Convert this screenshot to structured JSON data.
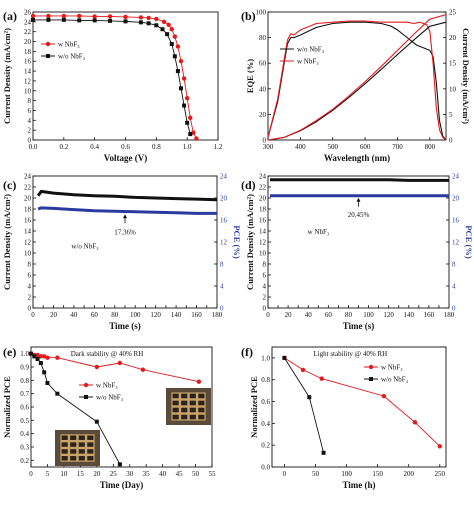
{
  "chart_data": [
    {
      "id": "a",
      "panel_label": "(a)",
      "type": "line",
      "xlabel": "Voltage (V)",
      "ylabel": "Current Density (mA/cm²)",
      "xlim": [
        0.0,
        1.2
      ],
      "ylim": [
        0,
        26
      ],
      "xticks": [
        "0.0",
        "0.2",
        "0.4",
        "0.6",
        "0.8",
        "1.0",
        "1.2"
      ],
      "yticks": [
        "0",
        "2",
        "4",
        "6",
        "8",
        "10",
        "12",
        "14",
        "16",
        "18",
        "20",
        "22",
        "24",
        "26"
      ],
      "legend": {
        "position": "top-left"
      },
      "series": [
        {
          "name": "w NbF₃",
          "color": "#e41a1c",
          "marker": "circle",
          "x": [
            0.0,
            0.1,
            0.2,
            0.3,
            0.4,
            0.5,
            0.6,
            0.7,
            0.75,
            0.8,
            0.85,
            0.88,
            0.9,
            0.92,
            0.94,
            0.96,
            0.98,
            1.0,
            1.02,
            1.04,
            1.06
          ],
          "y": [
            25.2,
            25.2,
            25.2,
            25.2,
            25.1,
            25.1,
            25.0,
            24.9,
            24.8,
            24.6,
            24.0,
            23.4,
            22.5,
            21.0,
            19.0,
            16.0,
            12.5,
            8.5,
            4.5,
            1.5,
            0.3
          ]
        },
        {
          "name": "w/o NbF₃",
          "color": "#111111",
          "marker": "square",
          "x": [
            0.0,
            0.1,
            0.2,
            0.3,
            0.4,
            0.5,
            0.6,
            0.7,
            0.75,
            0.8,
            0.84,
            0.87,
            0.9,
            0.92,
            0.94,
            0.96,
            0.98,
            1.0,
            1.02
          ],
          "y": [
            24.4,
            24.4,
            24.4,
            24.3,
            24.3,
            24.2,
            24.1,
            23.9,
            23.7,
            23.3,
            22.5,
            21.5,
            19.5,
            17.0,
            14.0,
            10.5,
            7.0,
            3.5,
            1.2
          ]
        }
      ]
    },
    {
      "id": "b",
      "panel_label": "(b)",
      "type": "line",
      "xlabel": "Wavelength (nm)",
      "ylabel": "EQE (%)",
      "ylabel2": "Current Density (mA/cm²)",
      "xlim": [
        300,
        850
      ],
      "ylim": [
        0,
        100
      ],
      "y2lim": [
        0,
        25
      ],
      "xticks": [
        "300",
        "400",
        "500",
        "600",
        "700",
        "800"
      ],
      "yticks": [
        "0",
        "20",
        "40",
        "60",
        "80",
        "100"
      ],
      "y2ticks": [
        "0",
        "5",
        "10",
        "15",
        "20",
        "25"
      ],
      "legend": {
        "position": "center-left"
      },
      "series": [
        {
          "name": "w/o NbF₃",
          "color": "#111111",
          "axis": "left",
          "x": [
            300,
            330,
            360,
            370,
            380,
            400,
            450,
            500,
            550,
            600,
            650,
            680,
            700,
            720,
            740,
            760,
            780,
            800,
            810,
            820,
            830,
            840,
            850
          ],
          "y": [
            2,
            30,
            75,
            80,
            80,
            82,
            88,
            91,
            92,
            92,
            91,
            89,
            86,
            82,
            78,
            74,
            72,
            70,
            65,
            45,
            15,
            3,
            0
          ]
        },
        {
          "name": "w NbF₃",
          "color": "#e41a1c",
          "axis": "left",
          "x": [
            300,
            330,
            360,
            370,
            380,
            400,
            450,
            500,
            550,
            600,
            650,
            700,
            730,
            750,
            770,
            790,
            800,
            810,
            820,
            830,
            840,
            850
          ],
          "y": [
            2,
            32,
            78,
            83,
            82,
            86,
            91,
            92,
            93,
            93,
            92,
            92,
            92,
            91,
            92,
            90,
            85,
            60,
            25,
            8,
            2,
            0
          ]
        },
        {
          "name": "w/o NbF₃ integrated",
          "color": "#111111",
          "axis": "right",
          "x": [
            300,
            350,
            400,
            450,
            500,
            550,
            600,
            650,
            700,
            750,
            800,
            850
          ],
          "y": [
            0,
            0.5,
            1.8,
            3.6,
            5.8,
            8.3,
            11.0,
            13.8,
            16.7,
            19.5,
            22.2,
            23.0
          ]
        },
        {
          "name": "w NbF₃ integrated",
          "color": "#e41a1c",
          "axis": "right",
          "x": [
            300,
            350,
            400,
            450,
            500,
            550,
            600,
            650,
            700,
            750,
            800,
            850
          ],
          "y": [
            0,
            0.5,
            1.9,
            3.8,
            6.0,
            8.6,
            11.4,
            14.4,
            17.5,
            20.6,
            23.6,
            24.5
          ]
        }
      ]
    },
    {
      "id": "c",
      "panel_label": "(c)",
      "type": "line",
      "xlabel": "Time (s)",
      "ylabel": "Current Density (mA/cm²)",
      "ylabel2": "PCE (%)",
      "xlim": [
        0,
        180
      ],
      "ylim": [
        0,
        24
      ],
      "y2lim": [
        0,
        24
      ],
      "xticks": [
        "0",
        "10",
        "20",
        "30",
        "40",
        "50",
        "60",
        "70",
        "80",
        "90",
        "100",
        "110",
        "120",
        "130",
        "140",
        "150",
        "160",
        "170",
        "180"
      ],
      "yticks": [
        "0",
        "2",
        "4",
        "6",
        "8",
        "10",
        "12",
        "14",
        "16",
        "18",
        "20",
        "22",
        "24"
      ],
      "y2ticks": [
        "0",
        "4",
        "8",
        "12",
        "16",
        "20",
        "24"
      ],
      "annotations": [
        "17.36%",
        "w/o NbF₃"
      ],
      "series": [
        {
          "name": "Current Density",
          "color": "#111111",
          "axis": "left",
          "x": [
            5,
            8,
            20,
            40,
            60,
            80,
            100,
            120,
            140,
            160,
            180
          ],
          "y": [
            20.4,
            21.2,
            20.9,
            20.6,
            20.4,
            20.3,
            20.1,
            20.0,
            19.9,
            19.8,
            19.7
          ]
        },
        {
          "name": "PCE",
          "color": "#2b3a9e",
          "axis": "right",
          "x": [
            5,
            8,
            20,
            40,
            60,
            80,
            100,
            120,
            140,
            160,
            180
          ],
          "y": [
            18.0,
            18.2,
            18.1,
            17.9,
            17.7,
            17.6,
            17.5,
            17.4,
            17.3,
            17.2,
            17.2
          ]
        }
      ]
    },
    {
      "id": "d",
      "panel_label": "(d)",
      "type": "line",
      "xlabel": "Time (s)",
      "ylabel": "Current Density (mA/cm²)",
      "ylabel2": "PCE (%)",
      "xlim": [
        0,
        180
      ],
      "ylim": [
        0,
        24
      ],
      "y2lim": [
        0,
        24
      ],
      "xticks": [
        "0",
        "10",
        "20",
        "30",
        "40",
        "50",
        "60",
        "70",
        "80",
        "90",
        "100",
        "110",
        "120",
        "130",
        "140",
        "150",
        "160",
        "170",
        "180"
      ],
      "yticks": [
        "0",
        "2",
        "4",
        "6",
        "8",
        "10",
        "12",
        "14",
        "16",
        "18",
        "20",
        "22",
        "24"
      ],
      "y2ticks": [
        "0",
        "4",
        "8",
        "12",
        "16",
        "20",
        "24"
      ],
      "annotations": [
        "20.45%",
        "w NbF₃"
      ],
      "series": [
        {
          "name": "Current Density",
          "color": "#111111",
          "axis": "left",
          "x": [
            2,
            20,
            40,
            60,
            80,
            100,
            120,
            140,
            160,
            180
          ],
          "y": [
            23.3,
            23.3,
            23.3,
            23.3,
            23.3,
            23.3,
            23.3,
            23.2,
            23.2,
            23.2
          ]
        },
        {
          "name": "PCE",
          "color": "#2b3a9e",
          "axis": "right",
          "x": [
            2,
            20,
            40,
            60,
            80,
            100,
            120,
            140,
            160,
            180
          ],
          "y": [
            20.4,
            20.4,
            20.4,
            20.4,
            20.4,
            20.4,
            20.4,
            20.4,
            20.4,
            20.4
          ]
        }
      ]
    },
    {
      "id": "e",
      "panel_label": "(e)",
      "type": "line",
      "title": "Dark stability @ 40% RH",
      "xlabel": "Time (Day)",
      "ylabel": "Normalized PCE",
      "xlim": [
        0,
        55
      ],
      "ylim": [
        0.15,
        1.05
      ],
      "xticks": [
        "0",
        "5",
        "10",
        "15",
        "20",
        "25",
        "30",
        "35",
        "40",
        "45",
        "50",
        "55"
      ],
      "yticks": [
        "0.2",
        "0.3",
        "0.4",
        "0.5",
        "0.6",
        "0.7",
        "0.8",
        "0.9",
        "1.0"
      ],
      "legend": {
        "position": "center"
      },
      "series": [
        {
          "name": "w NbF₃",
          "color": "#e41a1c",
          "marker": "circle",
          "x": [
            0,
            1,
            2,
            3,
            4,
            5,
            8,
            20,
            27,
            34,
            51
          ],
          "y": [
            1.0,
            0.99,
            0.99,
            0.98,
            0.98,
            0.97,
            0.97,
            0.9,
            0.93,
            0.88,
            0.79
          ]
        },
        {
          "name": "w/o NbF₃",
          "color": "#111111",
          "marker": "square",
          "x": [
            0,
            1,
            2,
            3,
            4,
            5,
            8,
            20,
            27
          ],
          "y": [
            1.0,
            0.98,
            0.96,
            0.93,
            0.86,
            0.78,
            0.7,
            0.49,
            0.17
          ]
        }
      ]
    },
    {
      "id": "f",
      "panel_label": "(f)",
      "type": "line",
      "title": "Light stability @ 40% RH",
      "xlabel": "Time (h)",
      "ylabel": "Normalized PCE",
      "xlim": [
        -20,
        260
      ],
      "ylim": [
        0.0,
        1.1
      ],
      "xticks": [
        "0",
        "50",
        "100",
        "150",
        "200",
        "250"
      ],
      "yticks": [
        "0.0",
        "0.2",
        "0.4",
        "0.6",
        "0.8",
        "1.0"
      ],
      "legend": {
        "position": "top-right"
      },
      "series": [
        {
          "name": "w NbF₃",
          "color": "#e41a1c",
          "marker": "circle",
          "x": [
            0,
            30,
            60,
            160,
            210,
            250
          ],
          "y": [
            1.0,
            0.89,
            0.81,
            0.65,
            0.41,
            0.19
          ]
        },
        {
          "name": "w/o NbF₃",
          "color": "#111111",
          "marker": "square",
          "x": [
            0,
            40,
            63
          ],
          "y": [
            1.0,
            0.64,
            0.13
          ]
        }
      ]
    }
  ]
}
